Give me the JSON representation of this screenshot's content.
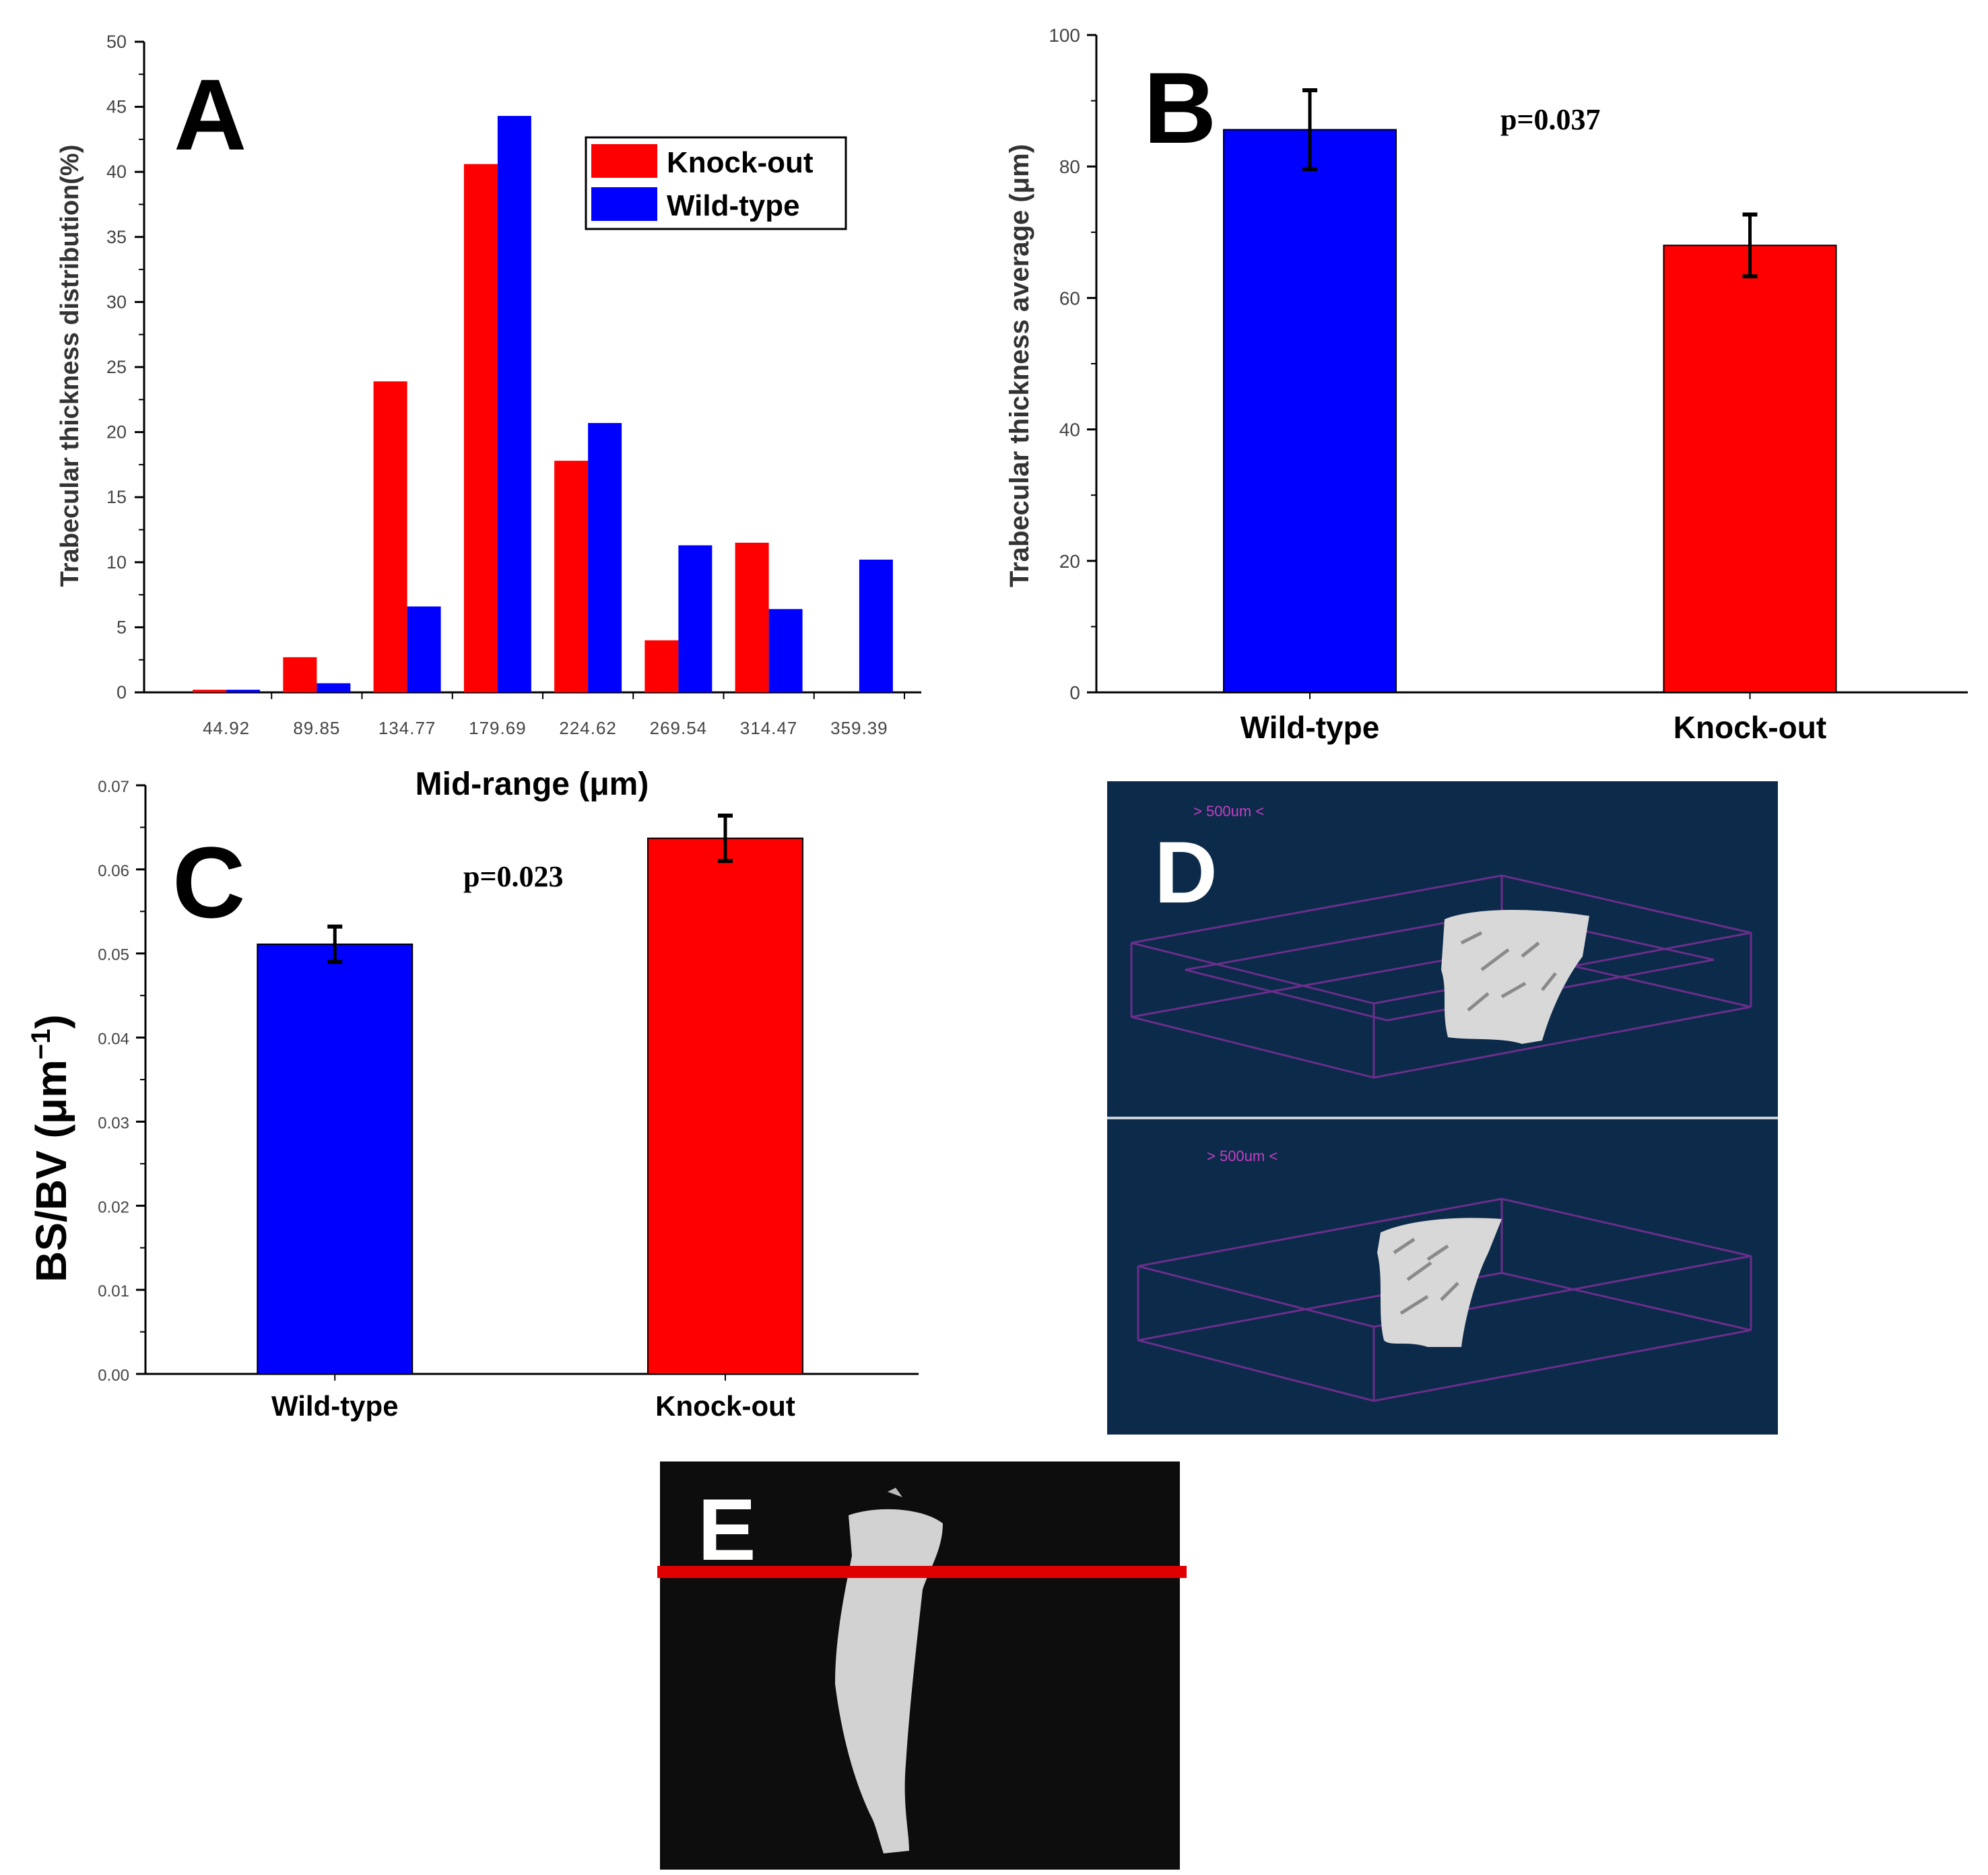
{
  "colors": {
    "knockout": "#ff0000",
    "wildtype": "#0000ff",
    "panel_d_bg": "#0c2a4a",
    "panel_d_line": "#6a2e8a",
    "panel_e_bg": "#0d0d0d",
    "panel_e_line": "#e00000"
  },
  "panels": {
    "A": {
      "letter": "A",
      "xlabel": "Mid-range (μm)",
      "ylabel": "Trabecular thickness distribution(%)"
    },
    "B": {
      "letter": "B",
      "ylabel_text": "Trabecular thickness average (",
      "ylabel_unit": "μm",
      "ylabel_close": ")",
      "pvalue": "p=0.037"
    },
    "C": {
      "letter": "C",
      "ylabel_text": "BS/BV (",
      "ylabel_unit": "μm",
      "ylabel_exp": "−1",
      "ylabel_close": ")",
      "pvalue": "p=0.023"
    },
    "D": {
      "letter": "D",
      "scale_top": "> 500um <",
      "scale_bottom": "> 500um <"
    },
    "E": {
      "letter": "E"
    }
  },
  "chart_data": [
    {
      "panel": "A",
      "type": "bar",
      "title": "",
      "xlabel": "Mid-range (μm)",
      "ylabel": "Trabecular thickness distribution(%)",
      "categories": [
        "44.92",
        "89.85",
        "134.77",
        "179.69",
        "224.62",
        "269.54",
        "314.47",
        "359.39"
      ],
      "series": [
        {
          "name": "Knock-out",
          "values": [
            0.2,
            2.7,
            23.9,
            40.6,
            17.8,
            4.0,
            11.5,
            0.0
          ]
        },
        {
          "name": "Wild-type",
          "values": [
            0.2,
            0.7,
            6.6,
            44.3,
            20.7,
            11.3,
            6.4,
            10.2
          ]
        }
      ],
      "ylim": [
        0,
        50
      ],
      "yticks": [
        "0",
        "5",
        "10",
        "15",
        "20",
        "25",
        "30",
        "35",
        "40",
        "45",
        "50"
      ],
      "legend": [
        "Knock-out",
        "Wild-type"
      ],
      "legend_position": "top-right",
      "grid": false
    },
    {
      "panel": "B",
      "type": "bar",
      "title": "",
      "xlabel": "",
      "ylabel": "Trabecular thickness average (μm)",
      "categories": [
        "Wild-type",
        "Knock-out"
      ],
      "values": [
        85.6,
        68.0
      ],
      "errors": [
        6.0,
        4.7
      ],
      "ylim": [
        0,
        100
      ],
      "yticks": [
        "0",
        "20",
        "40",
        "60",
        "80",
        "100"
      ],
      "annotation": "p=0.037",
      "grid": false
    },
    {
      "panel": "C",
      "type": "bar",
      "title": "",
      "xlabel": "",
      "ylabel": "BS/BV (μm⁻¹)",
      "categories": [
        "Wild-type",
        "Knock-out"
      ],
      "values": [
        0.0511,
        0.0637
      ],
      "errors": [
        0.0021,
        0.0027
      ],
      "ylim": [
        0,
        0.07
      ],
      "yticks": [
        "0.00",
        "0.01",
        "0.02",
        "0.03",
        "0.04",
        "0.05",
        "0.06",
        "0.07"
      ],
      "annotation": "p=0.023",
      "grid": false
    }
  ]
}
